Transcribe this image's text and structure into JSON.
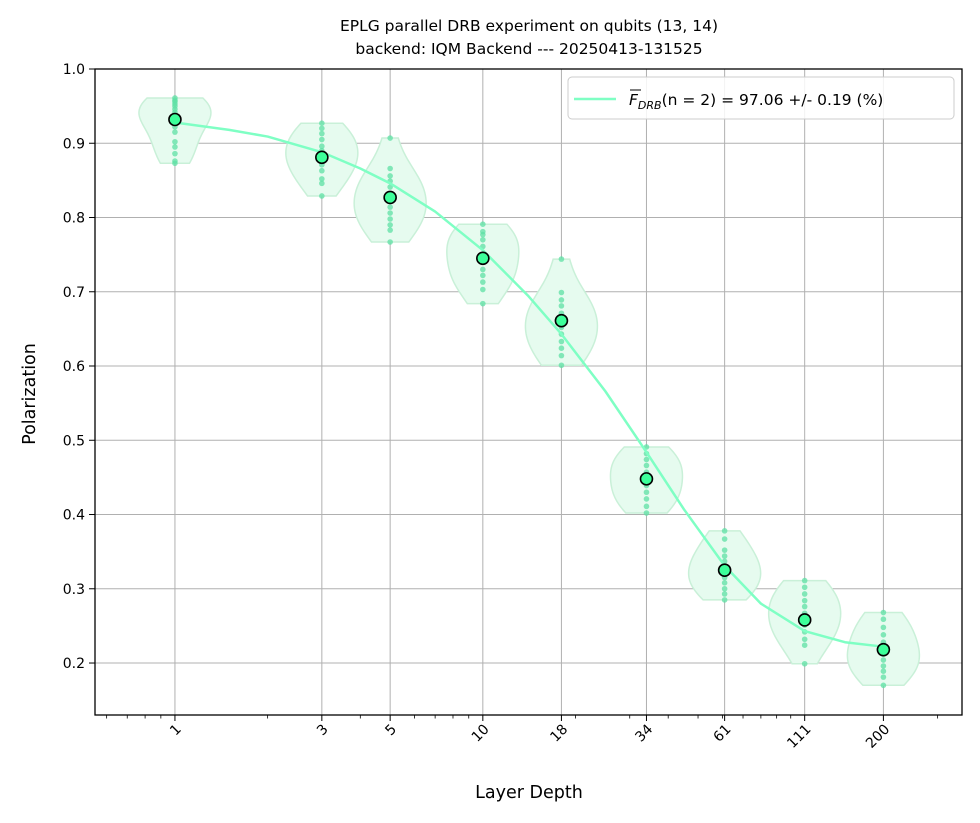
{
  "chart_data": {
    "type": "scatter",
    "title": "EPLG parallel DRB experiment on qubits (13, 14)",
    "subtitle": "backend: IQM Backend --- 20250413-131525",
    "xlabel": "Layer Depth",
    "ylabel": "Polarization",
    "x_scale": "log",
    "xlim": [
      0.55,
      360
    ],
    "ylim": [
      0.13,
      1.0
    ],
    "x_ticks": [
      1,
      3,
      5,
      10,
      18,
      34,
      61,
      111,
      200
    ],
    "x_tick_labels": [
      "1",
      "3",
      "5",
      "10",
      "18",
      "34",
      "61",
      "111",
      "200"
    ],
    "y_ticks": [
      0.2,
      0.3,
      0.4,
      0.5,
      0.6,
      0.7,
      0.8,
      0.9,
      1.0
    ],
    "y_tick_labels": [
      "0.2",
      "0.3",
      "0.4",
      "0.5",
      "0.6",
      "0.7",
      "0.8",
      "0.9",
      "1.0"
    ],
    "grid": true,
    "legend_position": "top-right",
    "colors": {
      "fit_line": "#7fffc4",
      "mean_marker": "#3dff9a",
      "violin_fill": "#e6fbef",
      "violin_edge": "#c9f0d8",
      "samples": "#5de0a4"
    },
    "legend": {
      "label_main": "F",
      "label_sub": "DRB",
      "label_args": "(n = 2)",
      "label_value": " = 97.06 +/- 0.19 (%)"
    },
    "mean_points": {
      "x": [
        1,
        3,
        5,
        10,
        18,
        34,
        61,
        111,
        200
      ],
      "y": [
        0.932,
        0.881,
        0.827,
        0.745,
        0.661,
        0.448,
        0.325,
        0.258,
        0.218
      ]
    },
    "fit_curve": {
      "x": [
        1,
        1.5,
        2,
        3,
        4,
        5,
        7,
        10,
        14,
        18,
        25,
        34,
        45,
        61,
        80,
        111,
        150,
        200
      ],
      "y": [
        0.928,
        0.918,
        0.909,
        0.888,
        0.866,
        0.846,
        0.808,
        0.756,
        0.695,
        0.643,
        0.566,
        0.484,
        0.407,
        0.331,
        0.28,
        0.243,
        0.228,
        0.222
      ]
    },
    "violins": [
      {
        "x": 1,
        "y": [
          0.873,
          0.876,
          0.886,
          0.895,
          0.902,
          0.915,
          0.922,
          0.928,
          0.934,
          0.938,
          0.942,
          0.946,
          0.95,
          0.953,
          0.956,
          0.958,
          0.961
        ]
      },
      {
        "x": 3,
        "y": [
          0.829,
          0.846,
          0.852,
          0.863,
          0.871,
          0.878,
          0.884,
          0.89,
          0.896,
          0.905,
          0.913,
          0.92,
          0.927
        ]
      },
      {
        "x": 5,
        "y": [
          0.767,
          0.783,
          0.79,
          0.798,
          0.806,
          0.814,
          0.822,
          0.832,
          0.841,
          0.849,
          0.856,
          0.866,
          0.907
        ]
      },
      {
        "x": 10,
        "y": [
          0.684,
          0.703,
          0.713,
          0.722,
          0.73,
          0.74,
          0.75,
          0.761,
          0.77,
          0.777,
          0.781,
          0.791
        ]
      },
      {
        "x": 18,
        "y": [
          0.601,
          0.614,
          0.624,
          0.633,
          0.643,
          0.652,
          0.662,
          0.671,
          0.681,
          0.689,
          0.699,
          0.744
        ]
      },
      {
        "x": 34,
        "y": [
          0.402,
          0.411,
          0.421,
          0.43,
          0.439,
          0.448,
          0.457,
          0.466,
          0.474,
          0.482,
          0.491
        ]
      },
      {
        "x": 61,
        "y": [
          0.285,
          0.293,
          0.3,
          0.308,
          0.315,
          0.322,
          0.329,
          0.337,
          0.344,
          0.352,
          0.367,
          0.378
        ]
      },
      {
        "x": 111,
        "y": [
          0.199,
          0.224,
          0.232,
          0.242,
          0.251,
          0.259,
          0.267,
          0.276,
          0.284,
          0.293,
          0.302,
          0.311
        ]
      },
      {
        "x": 200,
        "y": [
          0.17,
          0.181,
          0.189,
          0.196,
          0.204,
          0.212,
          0.219,
          0.228,
          0.238,
          0.248,
          0.259,
          0.268
        ]
      }
    ]
  }
}
